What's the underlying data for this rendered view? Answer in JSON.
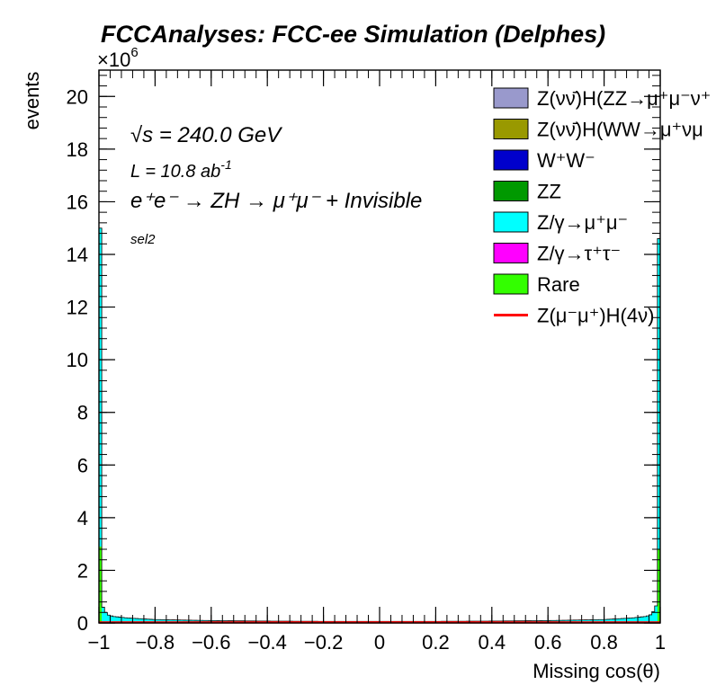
{
  "title": "FCCAnalyses: FCC-ee Simulation (Delphes)",
  "annotations": {
    "sqrt_s": "√s = 240.0 GeV",
    "lumi": "L = 10.8 ab",
    "lumi_exp": "-1",
    "process": "e⁺e⁻ → ZH → μ⁺μ⁻ + Invisible",
    "selection": "sel2"
  },
  "axes": {
    "xlabel": "Missing cos(θ)",
    "ylabel": "events",
    "y_multiplier": "×10",
    "y_multiplier_exp": "6"
  },
  "legend": [
    {
      "label": "Z(νν̄)H(ZZ→μ⁺μ⁻ν⁺",
      "color": "#9999cc",
      "kind": "box"
    },
    {
      "label": "Z(νν̄)H(WW→μ⁺νμ",
      "color": "#999900",
      "kind": "box"
    },
    {
      "label": "W⁺W⁻",
      "color": "#0000cc",
      "kind": "box"
    },
    {
      "label": "ZZ",
      "color": "#009900",
      "kind": "box"
    },
    {
      "label": "Z/γ→μ⁺μ⁻",
      "color": "#00ffff",
      "kind": "box"
    },
    {
      "label": "Z/γ→τ⁺τ⁻",
      "color": "#ff00ff",
      "kind": "box"
    },
    {
      "label": "Rare",
      "color": "#33ff00",
      "kind": "box"
    },
    {
      "label": "Z(μ⁻μ⁺)H(4ν)",
      "color": "#ff0000",
      "kind": "line"
    }
  ],
  "chart_data": {
    "type": "area",
    "title": "FCCAnalyses: FCC-ee Simulation (Delphes)",
    "xlabel": "Missing cos(θ)",
    "ylabel": "events",
    "y_scale_factor": 1000000,
    "xlim": [
      -1,
      1
    ],
    "ylim": [
      0,
      21
    ],
    "x_ticks": [
      -1,
      -0.8,
      -0.6,
      -0.4,
      -0.2,
      0,
      0.2,
      0.4,
      0.6,
      0.8,
      1
    ],
    "x_tick_labels": [
      "−1",
      "−0.8",
      "−0.6",
      "−0.4",
      "−0.2",
      "0",
      "0.2",
      "0.4",
      "0.6",
      "0.8",
      "1"
    ],
    "y_ticks": [
      0,
      2,
      4,
      6,
      8,
      10,
      12,
      14,
      16,
      18,
      20
    ],
    "y_tick_labels": [
      "0",
      "2",
      "4",
      "6",
      "8",
      "10",
      "12",
      "14",
      "16",
      "18",
      "20"
    ],
    "stacked": true,
    "bin_width": 0.01,
    "histogram_points": [
      {
        "x": -0.995,
        "rare": 2.9,
        "zmumu": 12.1
      },
      {
        "x": -0.985,
        "rare": 0.05,
        "zmumu": 0.55
      },
      {
        "x": -0.975,
        "rare": 0.03,
        "zmumu": 0.37
      },
      {
        "x": -0.965,
        "rare": 0.02,
        "zmumu": 0.28
      },
      {
        "x": -0.95,
        "rare": 0.02,
        "zmumu": 0.23
      },
      {
        "x": -0.9,
        "rare": 0.02,
        "zmumu": 0.17
      },
      {
        "x": -0.8,
        "rare": 0.01,
        "zmumu": 0.12
      },
      {
        "x": -0.6,
        "rare": 0.01,
        "zmumu": 0.08
      },
      {
        "x": -0.4,
        "rare": 0.01,
        "zmumu": 0.06
      },
      {
        "x": -0.2,
        "rare": 0.01,
        "zmumu": 0.05
      },
      {
        "x": 0.0,
        "rare": 0.01,
        "zmumu": 0.05
      },
      {
        "x": 0.2,
        "rare": 0.01,
        "zmumu": 0.05
      },
      {
        "x": 0.4,
        "rare": 0.01,
        "zmumu": 0.06
      },
      {
        "x": 0.6,
        "rare": 0.01,
        "zmumu": 0.08
      },
      {
        "x": 0.8,
        "rare": 0.01,
        "zmumu": 0.12
      },
      {
        "x": 0.9,
        "rare": 0.02,
        "zmumu": 0.17
      },
      {
        "x": 0.95,
        "rare": 0.02,
        "zmumu": 0.23
      },
      {
        "x": 0.965,
        "rare": 0.02,
        "zmumu": 0.29
      },
      {
        "x": 0.975,
        "rare": 0.03,
        "zmumu": 0.4
      },
      {
        "x": 0.985,
        "rare": 0.05,
        "zmumu": 0.6
      },
      {
        "x": 0.995,
        "rare": 2.8,
        "zmumu": 11.8
      }
    ],
    "series": [
      {
        "name": "Z(νν̄)H(ZZ→μ⁺μ⁻ν⁺",
        "color": "#9999cc",
        "values": "~0 everywhere"
      },
      {
        "name": "Z(νν̄)H(WW→μ⁺νμ",
        "color": "#999900",
        "values": "~0 everywhere"
      },
      {
        "name": "W⁺W⁻",
        "color": "#0000cc",
        "values": "~0 everywhere"
      },
      {
        "name": "ZZ",
        "color": "#009900",
        "values": "~0 everywhere"
      },
      {
        "name": "Z/γ→μ⁺μ⁻",
        "color": "#00ffff",
        "values_key": "zmumu"
      },
      {
        "name": "Z/γ→τ⁺τ⁻",
        "color": "#ff00ff",
        "values": "~0 everywhere"
      },
      {
        "name": "Rare",
        "color": "#33ff00",
        "values_key": "rare"
      },
      {
        "name": "Z(μ⁻μ⁺)H(4ν)",
        "color": "#ff0000",
        "line_value": 0.02
      }
    ],
    "legend_position": "top-right",
    "grid": false
  }
}
